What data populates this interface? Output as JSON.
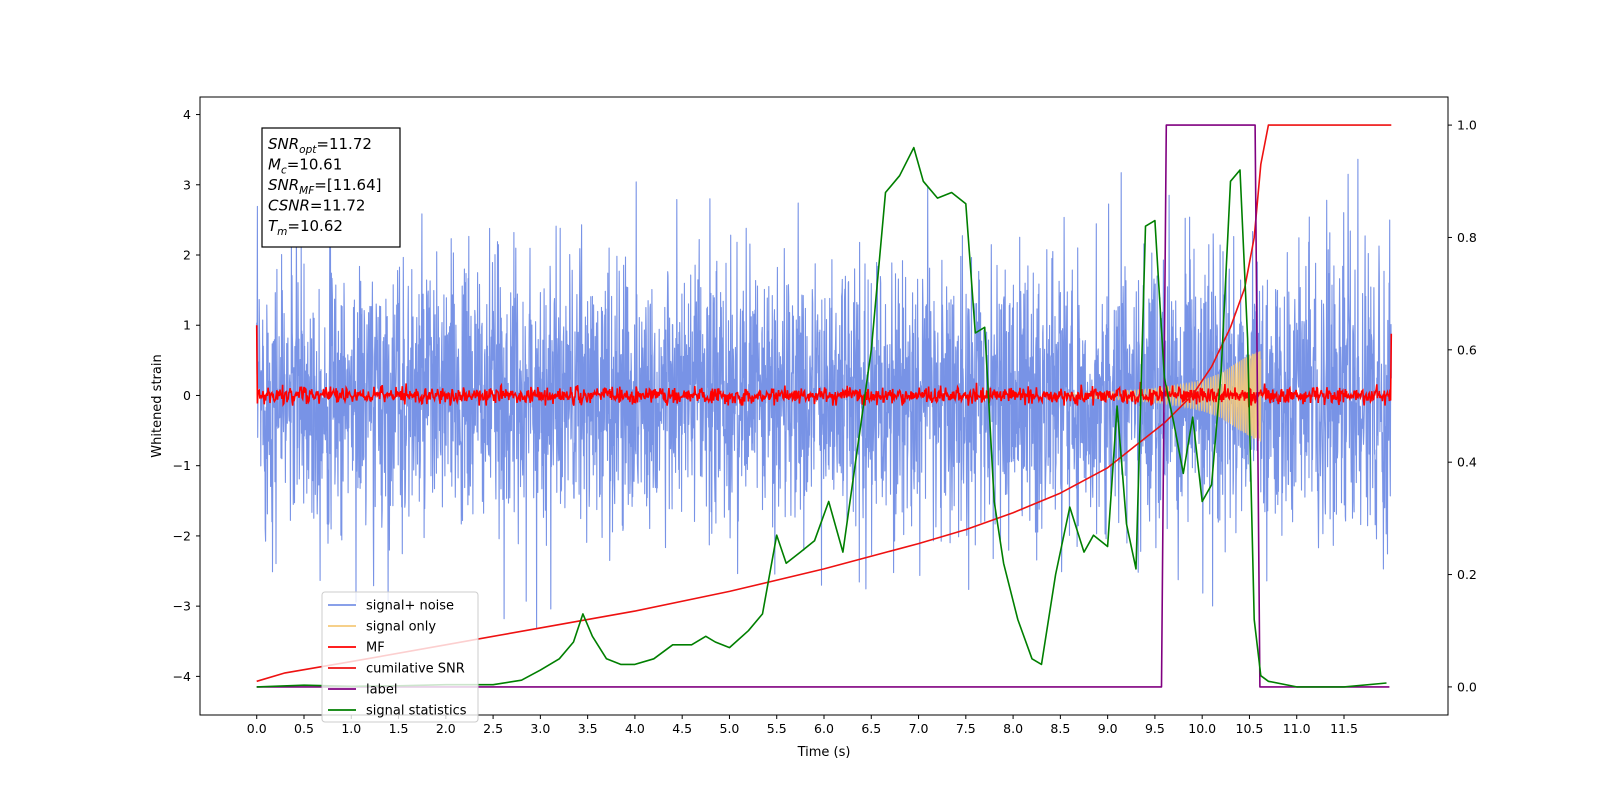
{
  "chart_data": {
    "type": "line",
    "xlabel": "Time (s)",
    "ylabel": "Whitened strain",
    "xlim": [
      -0.6,
      12.6
    ],
    "ylim": [
      -4.55,
      4.25
    ],
    "y2lim": [
      -0.05,
      1.05
    ],
    "x_ticks": [
      0.0,
      0.5,
      1.0,
      1.5,
      2.0,
      2.5,
      3.0,
      3.5,
      4.0,
      4.5,
      5.0,
      5.5,
      6.0,
      6.5,
      7.0,
      7.5,
      8.0,
      8.5,
      9.0,
      9.5,
      10.0,
      10.5,
      11.0,
      11.5
    ],
    "x_tick_labels": [
      "0.0",
      "0.5",
      "1.0",
      "1.5",
      "2.0",
      "2.5",
      "3.0",
      "3.5",
      "4.0",
      "4.5",
      "5.0",
      "5.5",
      "6.0",
      "6.5",
      "7.0",
      "7.5",
      "8.0",
      "8.5",
      "9.0",
      "9.5",
      "10.0",
      "10.5",
      "11.0",
      "11.5"
    ],
    "y_ticks": [
      4,
      3,
      2,
      1,
      0,
      -1,
      -2,
      -3,
      -4
    ],
    "y_tick_labels": [
      "4",
      "3",
      "2",
      "1",
      "0",
      "−1",
      "−2",
      "−3",
      "−4"
    ],
    "y2_ticks": [
      1.0,
      0.8,
      0.6,
      0.4,
      0.2,
      0.0
    ],
    "y2_tick_labels": [
      "1.0",
      "0.8",
      "0.6",
      "0.4",
      "0.2",
      "0.0"
    ],
    "grid": false,
    "legend_position": "lower-left",
    "legend": [
      {
        "label": "signal+ noise",
        "color": "#7893e6"
      },
      {
        "label": "signal only",
        "color": "#f5c97a"
      },
      {
        "label": "MF",
        "color": "#ff0000"
      },
      {
        "label": "cumilative SNR",
        "color": "#ee1111"
      },
      {
        "label": "label",
        "color": "#800080"
      },
      {
        "label": "signal statistics",
        "color": "#007f00"
      }
    ],
    "annotation": {
      "lines": [
        {
          "base": "SNR",
          "sub": "opt",
          "value": "=11.72"
        },
        {
          "base": "M",
          "sub": "c",
          "value": "=10.61"
        },
        {
          "base": "SNR",
          "sub": "MF",
          "value": "=[11.64]"
        },
        {
          "base": "CSNR",
          "sub": "",
          "value": "=11.72"
        },
        {
          "base": "T",
          "sub": "m",
          "value": "=10.62"
        }
      ]
    },
    "noise": {
      "x_range": [
        0.0,
        12.0
      ],
      "typical_amplitude": 1.0,
      "max_peak": 3.85,
      "min_trough": -4.05
    },
    "signal_envelope": {
      "x": [
        8.5,
        9.0,
        9.5,
        9.8,
        10.0,
        10.2,
        10.4,
        10.55,
        10.62
      ],
      "amplitude": [
        0.03,
        0.05,
        0.1,
        0.16,
        0.22,
        0.32,
        0.5,
        0.62,
        0.66
      ]
    },
    "mf": {
      "x_range": [
        0.0,
        12.0
      ],
      "baseline": 0.0,
      "amplitude": 0.12,
      "start_value": 1.0,
      "end_value": 0.88
    },
    "series": [
      {
        "name": "cumilative SNR",
        "axis": "right",
        "x": [
          0.0,
          0.3,
          1.0,
          2.0,
          3.0,
          4.0,
          5.0,
          6.0,
          7.0,
          7.5,
          8.0,
          8.5,
          9.0,
          9.3,
          9.6,
          9.9,
          10.1,
          10.3,
          10.45,
          10.55,
          10.62,
          10.7,
          12.0
        ],
        "y": [
          0.01,
          0.025,
          0.045,
          0.075,
          0.105,
          0.135,
          0.17,
          0.21,
          0.255,
          0.28,
          0.31,
          0.345,
          0.39,
          0.43,
          0.47,
          0.52,
          0.57,
          0.64,
          0.71,
          0.8,
          0.93,
          1.0,
          1.0
        ]
      },
      {
        "name": "label",
        "axis": "right",
        "x": [
          0.0,
          9.57,
          9.62,
          10.56,
          10.61,
          11.98
        ],
        "y": [
          0.0,
          0.0,
          1.0,
          1.0,
          0.0,
          0.0
        ]
      },
      {
        "name": "signal statistics",
        "axis": "right",
        "x": [
          0.0,
          0.5,
          1.0,
          1.5,
          2.0,
          2.5,
          2.8,
          3.0,
          3.2,
          3.35,
          3.45,
          3.55,
          3.7,
          3.85,
          4.0,
          4.2,
          4.4,
          4.6,
          4.75,
          4.85,
          5.0,
          5.2,
          5.35,
          5.5,
          5.6,
          5.75,
          5.9,
          6.05,
          6.2,
          6.35,
          6.5,
          6.65,
          6.8,
          6.95,
          7.05,
          7.2,
          7.35,
          7.5,
          7.6,
          7.7,
          7.8,
          7.9,
          8.05,
          8.2,
          8.3,
          8.45,
          8.6,
          8.75,
          8.85,
          9.0,
          9.1,
          9.2,
          9.3,
          9.4,
          9.5,
          9.6,
          9.7,
          9.8,
          9.9,
          10.0,
          10.1,
          10.2,
          10.3,
          10.4,
          10.48,
          10.55,
          10.62,
          10.7,
          11.0,
          11.5,
          11.95
        ],
        "y": [
          0.0,
          0.003,
          0.001,
          0.002,
          0.004,
          0.004,
          0.012,
          0.03,
          0.05,
          0.08,
          0.13,
          0.09,
          0.05,
          0.04,
          0.04,
          0.05,
          0.075,
          0.075,
          0.09,
          0.08,
          0.07,
          0.1,
          0.13,
          0.27,
          0.22,
          0.24,
          0.26,
          0.33,
          0.24,
          0.42,
          0.6,
          0.88,
          0.91,
          0.96,
          0.9,
          0.87,
          0.88,
          0.86,
          0.63,
          0.64,
          0.33,
          0.22,
          0.12,
          0.05,
          0.04,
          0.2,
          0.32,
          0.24,
          0.27,
          0.25,
          0.5,
          0.29,
          0.21,
          0.82,
          0.83,
          0.55,
          0.47,
          0.38,
          0.48,
          0.33,
          0.36,
          0.56,
          0.9,
          0.92,
          0.62,
          0.12,
          0.02,
          0.01,
          0.0,
          0.0,
          0.007
        ]
      }
    ]
  }
}
